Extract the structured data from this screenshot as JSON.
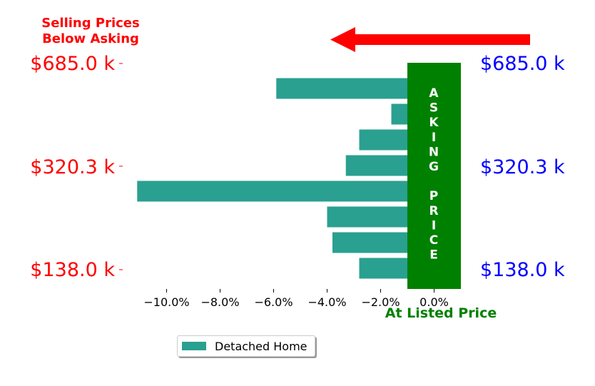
{
  "annotations": {
    "top_left_line1": "Selling Prices",
    "top_left_line2": "Below Asking",
    "asking_price_letters": [
      "A",
      "S",
      "K",
      "I",
      "N",
      "G",
      "",
      "P",
      "R",
      "I",
      "C",
      "E"
    ],
    "at_listed_price": "At Listed Price"
  },
  "colors": {
    "bar": "#2aa090",
    "asking_band": "#008000",
    "arrow": "#ff0000",
    "left_labels": "#ff0000",
    "right_labels": "#0000ff",
    "annotation_red": "#ff0000",
    "annotation_green": "#008000"
  },
  "chart_data": {
    "type": "bar",
    "orientation": "horizontal",
    "xlabel": "",
    "ylabel": "",
    "xlim": [
      -11.5,
      1.0
    ],
    "x_ticks": [
      -10,
      -8,
      -6,
      -4,
      -2,
      0
    ],
    "x_tick_labels": [
      "−10.0%",
      "−8.0%",
      "−6.0%",
      "−4.0%",
      "−2.0%",
      "0.0%"
    ],
    "y_tick_labels_left": [
      "$685.0 k",
      "$320.3 k",
      "$138.0 k"
    ],
    "y_tick_labels_right": [
      "$685.0 k",
      "$320.3 k",
      "$138.0 k"
    ],
    "series": [
      {
        "name": "Detached Home",
        "values": [
          -5.9,
          -1.6,
          -2.8,
          -3.3,
          -11.1,
          -4.0,
          -3.8,
          -2.8
        ]
      }
    ],
    "legend_position": "lower-center"
  }
}
